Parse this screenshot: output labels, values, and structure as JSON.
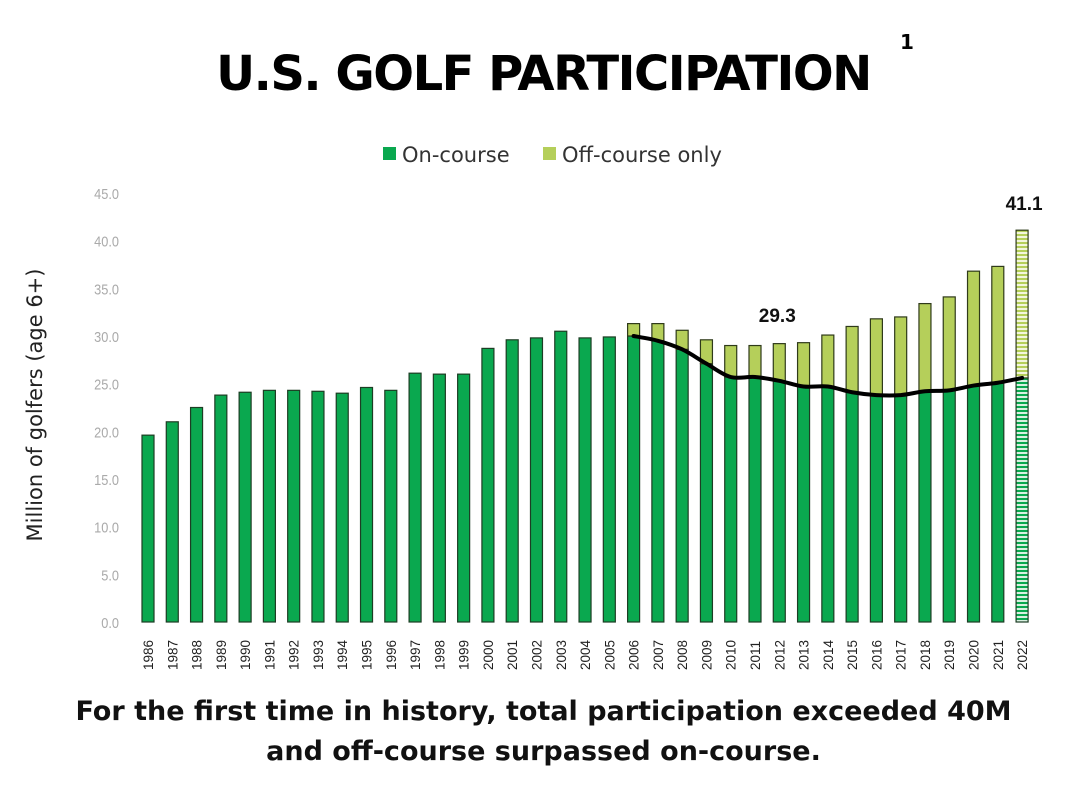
{
  "title": "U.S. GOLF PARTICIPATION",
  "title_superscript": "1",
  "caption_line1": "For the first time in history, total participation exceeded 40M",
  "caption_line2": "and off-course surpassed on-course.",
  "colors": {
    "on_course": "#0aa84f",
    "off_course": "#b5cf5a",
    "trend": "#000000",
    "tick": "#aaaaaa"
  },
  "chart_data": {
    "type": "bar",
    "stacked": true,
    "title": "U.S. GOLF PARTICIPATION",
    "ylabel": "Million of golfers (age 6+)",
    "xlabel": "",
    "ylim": [
      0,
      45
    ],
    "yticks": [
      "0.0",
      "5.0",
      "10.0",
      "15.0",
      "20.0",
      "25.0",
      "30.0",
      "35.0",
      "40.0",
      "45.0"
    ],
    "grid": false,
    "legend_position": "top",
    "categories": [
      "1986",
      "1987",
      "1988",
      "1989",
      "1990",
      "1991",
      "1992",
      "1993",
      "1994",
      "1995",
      "1996",
      "1997",
      "1998",
      "1999",
      "2000",
      "2001",
      "2002",
      "2003",
      "2004",
      "2005",
      "2006",
      "2007",
      "2008",
      "2009",
      "2010",
      "2011",
      "2012",
      "2013",
      "2014",
      "2015",
      "2016",
      "2017",
      "2018",
      "2019",
      "2020",
      "2021",
      "2022"
    ],
    "series": [
      {
        "name": "On-course",
        "values": [
          19.6,
          21.0,
          22.5,
          23.8,
          24.1,
          24.3,
          24.3,
          24.2,
          24.0,
          24.6,
          24.3,
          26.1,
          26.0,
          26.0,
          28.7,
          29.6,
          29.8,
          30.5,
          29.8,
          29.9,
          30.0,
          29.5,
          28.6,
          27.1,
          25.7,
          25.7,
          25.3,
          24.7,
          24.7,
          24.1,
          23.8,
          23.8,
          24.2,
          24.3,
          24.8,
          25.1,
          25.6
        ]
      },
      {
        "name": "Off-course only",
        "values": [
          0,
          0,
          0,
          0,
          0,
          0,
          0,
          0,
          0,
          0,
          0,
          0,
          0,
          0,
          0,
          0,
          0,
          0,
          0,
          0,
          1.3,
          1.8,
          2.0,
          2.5,
          3.3,
          3.3,
          3.9,
          4.6,
          5.4,
          6.9,
          8.0,
          8.2,
          9.2,
          9.8,
          12.0,
          12.2,
          15.5
        ]
      }
    ],
    "trend_line": {
      "from": "2006",
      "to": "2022",
      "values": [
        30.0,
        29.5,
        28.6,
        27.1,
        25.7,
        25.7,
        25.3,
        24.7,
        24.7,
        24.1,
        23.8,
        23.8,
        24.2,
        24.3,
        24.8,
        25.1,
        25.6
      ]
    },
    "annotations": [
      {
        "category": "2012",
        "text": "29.3"
      },
      {
        "category": "2022",
        "text": "41.1"
      }
    ],
    "hatched_category": "2022"
  }
}
